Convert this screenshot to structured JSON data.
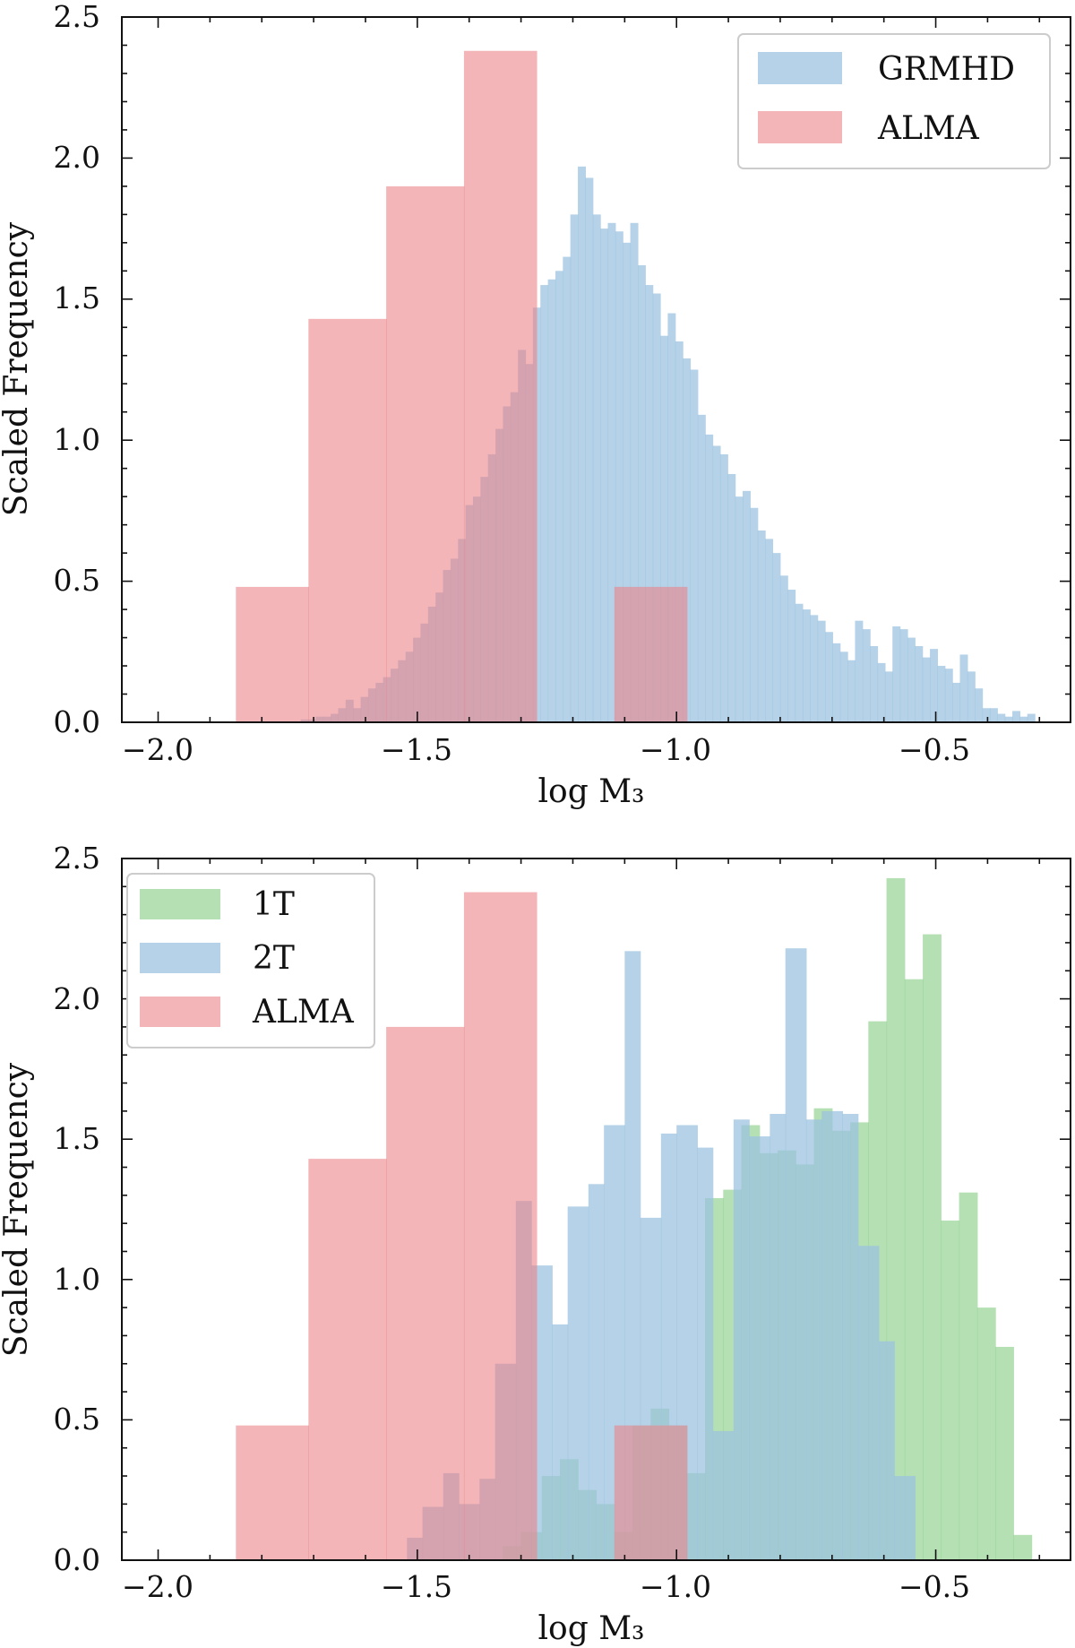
{
  "chart_data": [
    {
      "type": "bar",
      "histogram": true,
      "xlabel": "log M₃",
      "ylabel": "Scaled Frequency",
      "xlim": [
        -2.07,
        -0.24
      ],
      "ylim": [
        0,
        2.5
      ],
      "xticks": [
        -2.0,
        -1.5,
        -1.0,
        -0.5
      ],
      "xtick_labels": [
        "−2.0",
        "−1.5",
        "−1.0",
        "−0.5"
      ],
      "yticks": [
        0.0,
        0.5,
        1.0,
        1.5,
        2.0,
        2.5
      ],
      "ytick_labels": [
        "0.0",
        "0.5",
        "1.0",
        "1.5",
        "2.0",
        "2.5"
      ],
      "legend_position": "upper right",
      "legend": [
        "GRMHD",
        "ALMA"
      ],
      "series": [
        {
          "name": "GRMHD",
          "color": "#9cc3e0",
          "bin_start": -1.725,
          "bin_width": 0.01445,
          "values": [
            0.01,
            0.01,
            0.02,
            0.02,
            0.03,
            0.05,
            0.08,
            0.05,
            0.09,
            0.12,
            0.14,
            0.16,
            0.19,
            0.22,
            0.25,
            0.3,
            0.35,
            0.41,
            0.46,
            0.54,
            0.58,
            0.65,
            0.77,
            0.8,
            0.87,
            0.95,
            1.04,
            1.12,
            1.17,
            1.32,
            1.27,
            1.47,
            1.55,
            1.57,
            1.6,
            1.65,
            1.8,
            1.97,
            1.93,
            1.8,
            1.75,
            1.77,
            1.74,
            1.7,
            1.77,
            1.62,
            1.55,
            1.52,
            1.37,
            1.45,
            1.35,
            1.29,
            1.25,
            1.09,
            1.02,
            0.98,
            0.95,
            0.88,
            0.8,
            0.82,
            0.76,
            0.68,
            0.65,
            0.6,
            0.52,
            0.47,
            0.42,
            0.4,
            0.38,
            0.36,
            0.32,
            0.28,
            0.25,
            0.22,
            0.36,
            0.33,
            0.27,
            0.21,
            0.18,
            0.34,
            0.33,
            0.3,
            0.27,
            0.23,
            0.26,
            0.2,
            0.19,
            0.14,
            0.24,
            0.18,
            0.12,
            0.05,
            0.05,
            0.03,
            0.02,
            0.04,
            0.02,
            0.03
          ]
        },
        {
          "name": "ALMA",
          "color": "#eb8389",
          "edges": [
            -1.85,
            -1.71,
            -1.56,
            -1.41,
            -1.27,
            -1.12,
            -0.98
          ],
          "values": [
            0.48,
            1.43,
            1.9,
            2.38,
            0.0,
            0.48
          ]
        }
      ]
    },
    {
      "type": "bar",
      "histogram": true,
      "xlabel": "log M₃",
      "ylabel": "Scaled Frequency",
      "xlim": [
        -2.07,
        -0.24
      ],
      "ylim": [
        0,
        2.5
      ],
      "xticks": [
        -2.0,
        -1.5,
        -1.0,
        -0.5
      ],
      "xtick_labels": [
        "−2.0",
        "−1.5",
        "−1.0",
        "−0.5"
      ],
      "yticks": [
        0.0,
        0.5,
        1.0,
        1.5,
        2.0,
        2.5
      ],
      "ytick_labels": [
        "0.0",
        "0.5",
        "1.0",
        "1.5",
        "2.0",
        "2.5"
      ],
      "legend_position": "upper left",
      "legend": [
        "1T",
        "2T",
        "ALMA"
      ],
      "series": [
        {
          "name": "1T",
          "color": "#8ed08a",
          "edges": [
            -1.335,
            -1.3,
            -1.26,
            -1.225,
            -1.19,
            -1.155,
            -1.12,
            -1.085,
            -1.05,
            -1.015,
            -0.98,
            -0.945,
            -0.91,
            -0.875,
            -0.84,
            -0.805,
            -0.77,
            -0.735,
            -0.7,
            -0.665,
            -0.63,
            -0.595,
            -0.56,
            -0.525,
            -0.49,
            -0.455,
            -0.42,
            -0.385,
            -0.35,
            -0.315
          ],
          "values": [
            0.05,
            0.1,
            0.3,
            0.36,
            0.25,
            0.2,
            0.1,
            0.48,
            0.54,
            0.48,
            0.31,
            1.29,
            1.32,
            1.55,
            1.45,
            1.46,
            1.41,
            1.61,
            1.53,
            1.56,
            1.92,
            2.43,
            2.07,
            2.23,
            1.21,
            1.31,
            0.9,
            0.76,
            0.09
          ]
        },
        {
          "name": "2T",
          "color": "#9cc3e0",
          "edges": [
            -1.52,
            -1.49,
            -1.45,
            -1.42,
            -1.38,
            -1.35,
            -1.31,
            -1.28,
            -1.24,
            -1.21,
            -1.17,
            -1.14,
            -1.1,
            -1.07,
            -1.03,
            -1.0,
            -0.96,
            -0.93,
            -0.89,
            -0.86,
            -0.82,
            -0.79,
            -0.75,
            -0.72,
            -0.68,
            -0.65,
            -0.61,
            -0.58,
            -0.54
          ],
          "values": [
            0.08,
            0.19,
            0.31,
            0.2,
            0.29,
            0.7,
            1.28,
            1.05,
            0.84,
            1.26,
            1.34,
            1.55,
            2.17,
            1.22,
            1.52,
            1.55,
            1.47,
            0.46,
            1.57,
            1.51,
            1.59,
            2.18,
            1.57,
            1.6,
            1.59,
            1.12,
            0.78,
            0.3,
            0.09
          ]
        },
        {
          "name": "ALMA",
          "color": "#eb8389",
          "edges": [
            -1.85,
            -1.71,
            -1.56,
            -1.41,
            -1.27,
            -1.12,
            -0.98
          ],
          "values": [
            0.48,
            1.43,
            1.9,
            2.38,
            0.0,
            0.48
          ]
        }
      ]
    }
  ]
}
